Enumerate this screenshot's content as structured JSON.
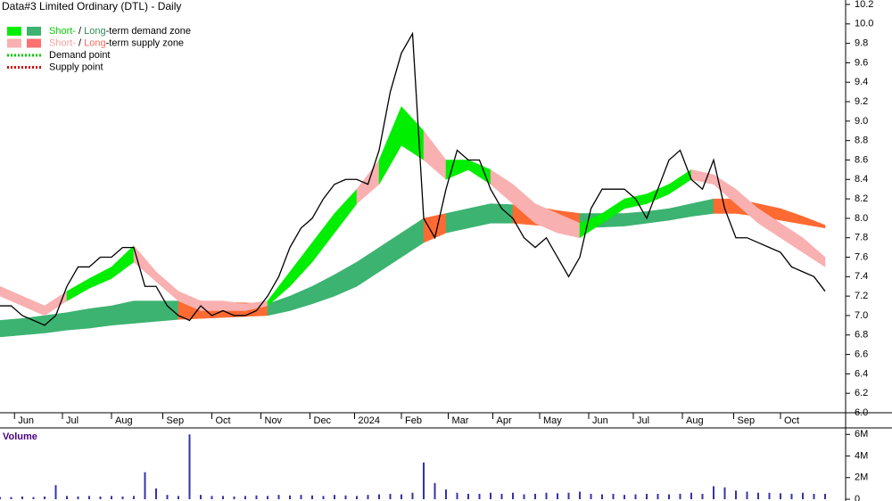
{
  "chart_data": {
    "type": "zone-chart",
    "title": "Data#3 Limited Ordinary (DTL) - Daily",
    "xlim": [
      0,
      74
    ],
    "xticks": [
      {
        "value": 1.3,
        "label": "Jun"
      },
      {
        "value": 5.6,
        "label": "Jul"
      },
      {
        "value": 10,
        "label": "Aug"
      },
      {
        "value": 14.6,
        "label": "Sep"
      },
      {
        "value": 19,
        "label": "Oct"
      },
      {
        "value": 23.4,
        "label": "Nov"
      },
      {
        "value": 27.8,
        "label": "Dec"
      },
      {
        "value": 31.8,
        "label": "2024"
      },
      {
        "value": 36,
        "label": "Feb"
      },
      {
        "value": 40.2,
        "label": "Mar"
      },
      {
        "value": 44.2,
        "label": "Apr"
      },
      {
        "value": 48.4,
        "label": "May"
      },
      {
        "value": 52.8,
        "label": "Jun"
      },
      {
        "value": 56.8,
        "label": "Jul"
      },
      {
        "value": 61.2,
        "label": "Aug"
      },
      {
        "value": 65.8,
        "label": "Sep"
      },
      {
        "value": 70,
        "label": "Oct"
      }
    ],
    "ylim": [
      6.0,
      10.2
    ],
    "yticks": [
      {
        "value": 6.0,
        "label": "6.0"
      },
      6.2,
      6.4,
      6.6,
      6.8,
      {
        "value": 7.0,
        "label": "7.0"
      },
      7.2,
      7.4,
      7.6,
      7.8,
      {
        "value": 8.0,
        "label": "8.0"
      },
      8.2,
      8.4,
      8.6,
      8.8,
      {
        "value": 9.0,
        "label": "9.0"
      },
      9.2,
      9.4,
      9.6,
      9.8,
      {
        "value": 10.0,
        "label": "10.0"
      },
      10.2
    ],
    "price": {
      "color": "#000000",
      "values": [
        7.1,
        7.1,
        7.0,
        6.95,
        6.9,
        7.0,
        7.3,
        7.5,
        7.5,
        7.6,
        7.6,
        7.7,
        7.7,
        7.3,
        7.3,
        7.1,
        7.0,
        6.95,
        7.1,
        7.0,
        7.05,
        7.0,
        7.0,
        7.05,
        7.2,
        7.4,
        7.7,
        7.9,
        8.0,
        8.2,
        8.35,
        8.4,
        8.4,
        8.35,
        8.7,
        9.3,
        9.7,
        9.9,
        8.0,
        7.8,
        8.3,
        8.7,
        8.6,
        8.6,
        8.3,
        8.1,
        8.0,
        7.8,
        7.7,
        7.8,
        7.6,
        7.4,
        7.6,
        8.1,
        8.3,
        8.3,
        8.3,
        8.2,
        8.0,
        8.3,
        8.6,
        8.7,
        8.4,
        8.3,
        8.6,
        8.1,
        7.8,
        7.8,
        7.75,
        7.7,
        7.65,
        7.5,
        7.45,
        7.4,
        7.25
      ]
    },
    "zones": [
      {
        "name": "Long",
        "demand_color": "#3cb371",
        "supply_color": "#ff6a33",
        "x": [
          0,
          2,
          4,
          6,
          8,
          10,
          12,
          14,
          16,
          18,
          20,
          22,
          24,
          26,
          28,
          30,
          32,
          34,
          36,
          38,
          40,
          42,
          44,
          46,
          48,
          50,
          52,
          54,
          56,
          58,
          60,
          62,
          64,
          66,
          68,
          70,
          72,
          74
        ],
        "lower": [
          6.78,
          6.8,
          6.82,
          6.85,
          6.87,
          6.9,
          6.92,
          6.94,
          6.96,
          6.97,
          6.98,
          6.99,
          7.0,
          7.05,
          7.12,
          7.2,
          7.3,
          7.45,
          7.6,
          7.75,
          7.85,
          7.9,
          7.95,
          7.95,
          7.93,
          7.92,
          7.9,
          7.91,
          7.92,
          7.95,
          7.98,
          8.02,
          8.05,
          8.05,
          8.02,
          7.98,
          7.94,
          7.9
        ],
        "upper": [
          6.95,
          6.97,
          7.0,
          7.03,
          7.07,
          7.1,
          7.15,
          7.15,
          7.15,
          7.15,
          7.14,
          7.13,
          7.12,
          7.2,
          7.3,
          7.42,
          7.55,
          7.7,
          7.85,
          8.0,
          8.05,
          8.1,
          8.15,
          8.14,
          8.12,
          8.08,
          8.05,
          8.05,
          8.05,
          8.07,
          8.1,
          8.15,
          8.2,
          8.2,
          8.15,
          8.1,
          8.02,
          7.93
        ]
      },
      {
        "name": "Short",
        "demand_color": "#00ee00",
        "supply_color": "#f9b0b0",
        "x": [
          0,
          2,
          4,
          6,
          8,
          10,
          12,
          14,
          16,
          18,
          20,
          22,
          24,
          26,
          28,
          30,
          32,
          34,
          36,
          38,
          40,
          42,
          44,
          46,
          48,
          50,
          52,
          54,
          56,
          58,
          60,
          62,
          64,
          66,
          68,
          70,
          72,
          74
        ],
        "lower": [
          7.2,
          7.1,
          7.0,
          7.15,
          7.28,
          7.38,
          7.55,
          7.35,
          7.15,
          7.05,
          7.05,
          7.05,
          7.1,
          7.3,
          7.55,
          7.85,
          8.15,
          8.35,
          8.75,
          8.6,
          8.4,
          8.5,
          8.35,
          8.15,
          7.95,
          7.85,
          7.8,
          7.95,
          8.1,
          8.15,
          8.25,
          8.4,
          8.35,
          8.15,
          7.95,
          7.8,
          7.65,
          7.5
        ],
        "upper": [
          7.3,
          7.2,
          7.1,
          7.25,
          7.38,
          7.5,
          7.72,
          7.45,
          7.25,
          7.15,
          7.15,
          7.12,
          7.15,
          7.45,
          7.75,
          8.05,
          8.3,
          8.6,
          9.15,
          8.9,
          8.6,
          8.6,
          8.5,
          8.35,
          8.15,
          8.05,
          7.95,
          8.05,
          8.2,
          8.25,
          8.35,
          8.5,
          8.45,
          8.3,
          8.1,
          7.95,
          7.8,
          7.6
        ]
      }
    ],
    "legend": [
      {
        "parts": [
          {
            "text": "Short-",
            "color": "#00cc00"
          },
          {
            "text": " / "
          },
          {
            "text": "Long",
            "color": "#2e8b57"
          },
          {
            "text": "-term demand zone"
          }
        ],
        "swatches": [
          "#00ee00",
          "#3cb371"
        ]
      },
      {
        "parts": [
          {
            "text": "Short-",
            "color": "#f4a0a0"
          },
          {
            "text": " / "
          },
          {
            "text": "Long",
            "color": "#ff6a5a"
          },
          {
            "text": "-term supply zone"
          }
        ],
        "swatches": [
          "#f9b0b0",
          "#ff7070"
        ]
      },
      {
        "parts": [
          {
            "text": "Demand point"
          }
        ],
        "dotted": "#00cc00"
      },
      {
        "parts": [
          {
            "text": "Supply point"
          }
        ],
        "dotted": "#dd0000"
      }
    ],
    "volume": {
      "title": "Volume",
      "color": "#3333aa",
      "ylim": [
        0,
        6600000
      ],
      "yticks": [
        0,
        {
          "value": 2000000,
          "label": "2M"
        },
        {
          "value": 4000000,
          "label": "4M"
        },
        {
          "value": 6000000,
          "label": "6M"
        }
      ],
      "values": [
        200000,
        200000,
        250000,
        200000,
        250000,
        1300000,
        300000,
        250000,
        300000,
        250000,
        300000,
        250000,
        300000,
        2500000,
        1000000,
        400000,
        300000,
        6000000,
        400000,
        300000,
        300000,
        250000,
        300000,
        350000,
        300000,
        400000,
        350000,
        400000,
        350000,
        300000,
        400000,
        350000,
        300000,
        400000,
        450000,
        500000,
        450000,
        600000,
        3400000,
        1500000,
        900000,
        600000,
        500000,
        500000,
        600000,
        500000,
        600000,
        450000,
        500000,
        600000,
        550000,
        600000,
        700000,
        500000,
        450000,
        500000,
        400000,
        450000,
        500000,
        500000,
        450000,
        500000,
        600000,
        500000,
        1200000,
        1100000,
        800000,
        700000,
        600000,
        600000,
        550000,
        500000,
        600000,
        500000,
        500000
      ]
    }
  }
}
